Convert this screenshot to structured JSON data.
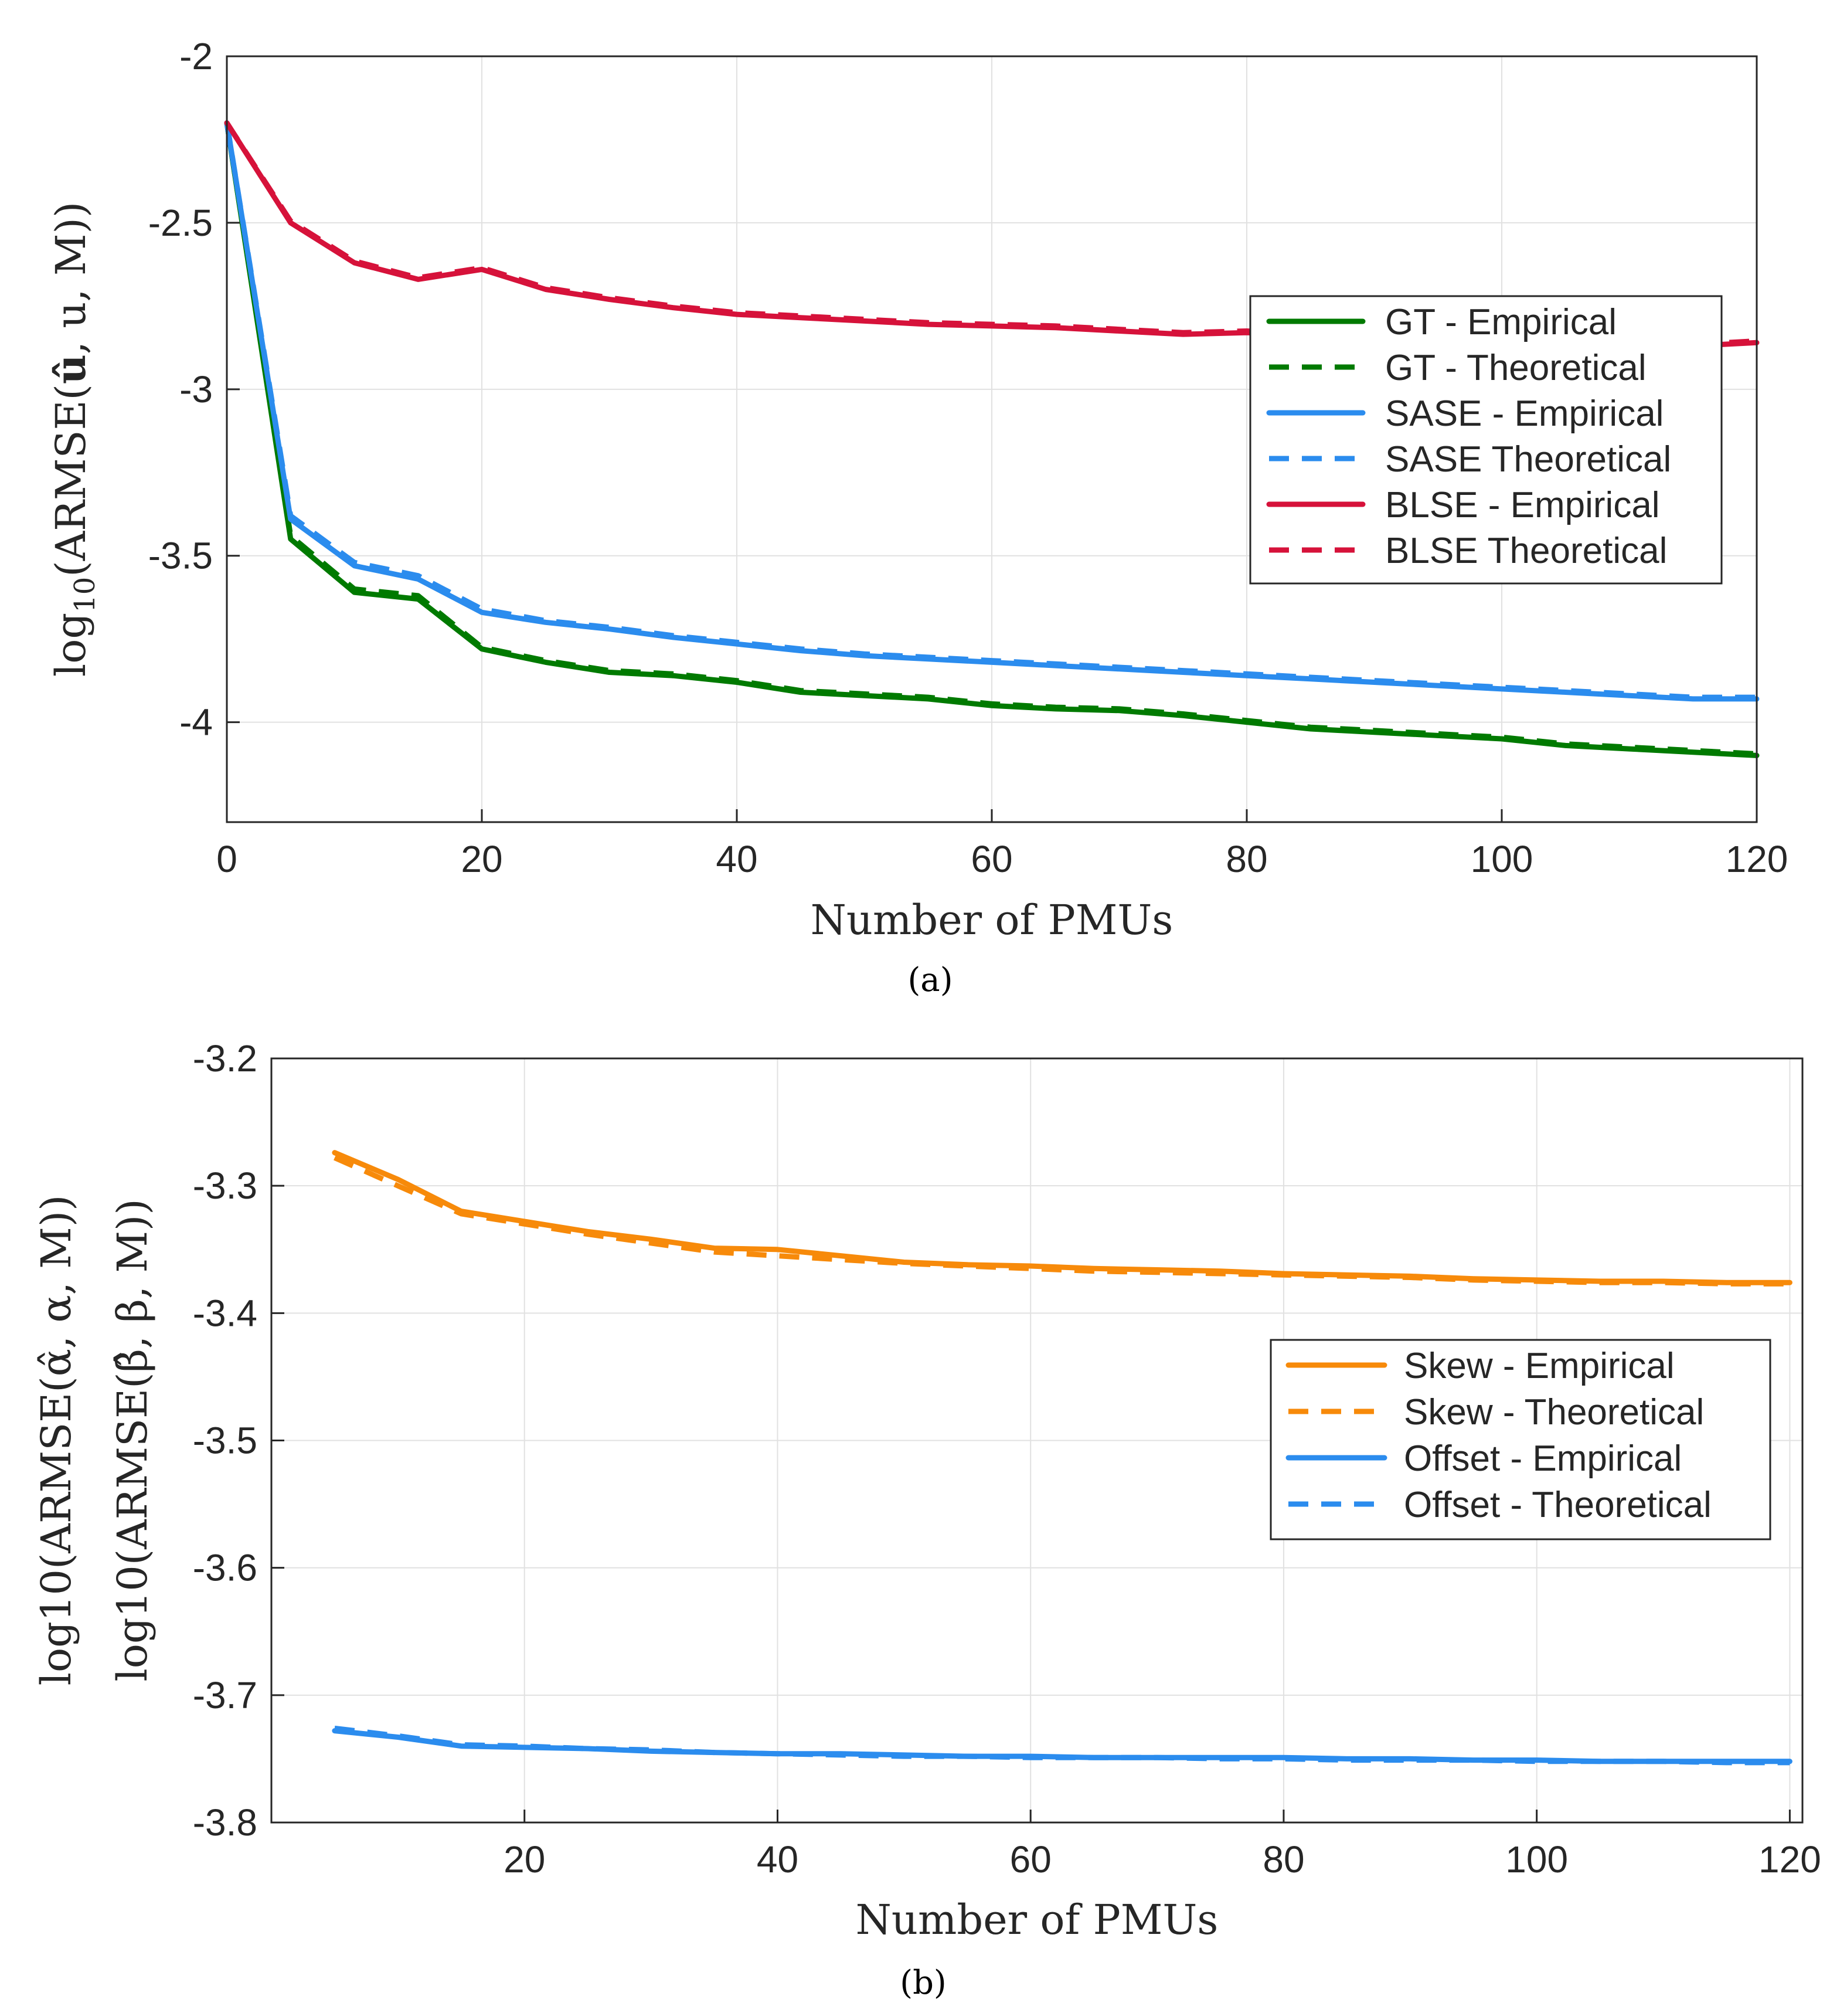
{
  "chart_data": [
    {
      "type": "line",
      "panel_label": "(a)",
      "xlabel": "Number of PMUs",
      "ylabel": "log10(ARMSE(û, u, M))",
      "ylabel_parts": {
        "base": "log",
        "sub": "10",
        "expr": "(ARMSE(",
        "hat": "û",
        "rest": ", u, M))"
      },
      "xlim": [
        0,
        120
      ],
      "ylim": [
        -4.3,
        -2.0
      ],
      "xticks": [
        0,
        20,
        40,
        60,
        80,
        100,
        120
      ],
      "xtick_labels": [
        "0",
        "20",
        "40",
        "60",
        "80",
        "100",
        "120"
      ],
      "yticks": [
        -2.0,
        -2.5,
        -3.0,
        -3.5,
        -4.0
      ],
      "ytick_labels": [
        "-2",
        "-2.5",
        "-3",
        "-3.5",
        "-4"
      ],
      "grid": true,
      "legend_position": "right",
      "x": [
        0,
        5,
        10,
        15,
        20,
        25,
        30,
        35,
        40,
        45,
        50,
        55,
        60,
        65,
        70,
        75,
        80,
        85,
        90,
        95,
        100,
        105,
        110,
        115,
        120
      ],
      "series": [
        {
          "name": "GT - Empirical",
          "color": "#007a00",
          "dash": "solid",
          "values": [
            -2.2,
            -3.45,
            -3.61,
            -3.63,
            -3.78,
            -3.82,
            -3.85,
            -3.86,
            -3.88,
            -3.91,
            -3.92,
            -3.93,
            -3.95,
            -3.96,
            -3.965,
            -3.98,
            -4.0,
            -4.02,
            -4.03,
            -4.04,
            -4.05,
            -4.07,
            -4.08,
            -4.09,
            -4.1
          ]
        },
        {
          "name": "GT - Theoretical",
          "color": "#007a00",
          "dash": "dashed",
          "values": [
            -2.2,
            -3.44,
            -3.6,
            -3.62,
            -3.775,
            -3.815,
            -3.845,
            -3.855,
            -3.875,
            -3.905,
            -3.915,
            -3.925,
            -3.945,
            -3.955,
            -3.96,
            -3.975,
            -3.995,
            -4.015,
            -4.025,
            -4.035,
            -4.045,
            -4.065,
            -4.075,
            -4.085,
            -4.095
          ]
        },
        {
          "name": "SASE - Empirical",
          "color": "#2b8cee",
          "dash": "solid",
          "values": [
            -2.2,
            -3.39,
            -3.53,
            -3.57,
            -3.67,
            -3.7,
            -3.72,
            -3.745,
            -3.765,
            -3.785,
            -3.8,
            -3.81,
            -3.82,
            -3.83,
            -3.84,
            -3.85,
            -3.86,
            -3.87,
            -3.88,
            -3.89,
            -3.9,
            -3.91,
            -3.92,
            -3.93,
            -3.93
          ]
        },
        {
          "name": "SASE Theoretical",
          "color": "#2b8cee",
          "dash": "dashed",
          "values": [
            -2.2,
            -3.38,
            -3.52,
            -3.56,
            -3.66,
            -3.695,
            -3.715,
            -3.74,
            -3.76,
            -3.78,
            -3.795,
            -3.805,
            -3.815,
            -3.825,
            -3.835,
            -3.845,
            -3.855,
            -3.865,
            -3.875,
            -3.885,
            -3.895,
            -3.905,
            -3.915,
            -3.925,
            -3.925
          ]
        },
        {
          "name": "BLSE - Empirical",
          "color": "#d6123a",
          "dash": "solid",
          "values": [
            -2.2,
            -2.5,
            -2.62,
            -2.67,
            -2.64,
            -2.7,
            -2.73,
            -2.755,
            -2.775,
            -2.785,
            -2.795,
            -2.805,
            -2.81,
            -2.815,
            -2.825,
            -2.835,
            -2.83,
            -2.84,
            -2.845,
            -2.85,
            -2.855,
            -2.86,
            -2.865,
            -2.87,
            -2.86
          ]
        },
        {
          "name": "BLSE Theoretical",
          "color": "#d6123a",
          "dash": "dashed",
          "values": [
            -2.2,
            -2.495,
            -2.615,
            -2.665,
            -2.635,
            -2.695,
            -2.725,
            -2.75,
            -2.77,
            -2.78,
            -2.79,
            -2.8,
            -2.805,
            -2.81,
            -2.82,
            -2.83,
            -2.825,
            -2.835,
            -2.84,
            -2.845,
            -2.85,
            -2.855,
            -2.86,
            -2.865,
            -2.855
          ]
        }
      ]
    },
    {
      "type": "line",
      "panel_label": "(b)",
      "xlabel": "Number of PMUs",
      "ylabel_lines": [
        "log10(ARMSE(α̂, α, M))",
        "log10(ARMSE(β̂, β, M))"
      ],
      "xlim": [
        0,
        121
      ],
      "ylim": [
        -3.8,
        -3.2
      ],
      "xticks": [
        20,
        40,
        60,
        80,
        100,
        120
      ],
      "xtick_labels": [
        "20",
        "40",
        "60",
        "80",
        "100",
        "120"
      ],
      "yticks": [
        -3.2,
        -3.3,
        -3.4,
        -3.5,
        -3.6,
        -3.7,
        -3.8
      ],
      "ytick_labels": [
        "-3.2",
        "-3.3",
        "-3.4",
        "-3.5",
        "-3.6",
        "-3.7",
        "-3.8"
      ],
      "grid": true,
      "legend_position": "right",
      "x": [
        5,
        10,
        15,
        20,
        25,
        30,
        35,
        40,
        45,
        50,
        55,
        60,
        65,
        70,
        75,
        80,
        85,
        90,
        95,
        100,
        105,
        110,
        115,
        120
      ],
      "series": [
        {
          "name": "Skew - Empirical",
          "color": "#f78a0a",
          "dash": "solid",
          "values": [
            -3.274,
            -3.295,
            -3.32,
            -3.328,
            -3.336,
            -3.342,
            -3.349,
            -3.35,
            -3.355,
            -3.36,
            -3.362,
            -3.363,
            -3.365,
            -3.366,
            -3.367,
            -3.369,
            -3.37,
            -3.371,
            -3.373,
            -3.374,
            -3.375,
            -3.375,
            -3.376,
            -3.376
          ]
        },
        {
          "name": "Skew - Theoretical",
          "color": "#f78a0a",
          "dash": "dashed",
          "values": [
            -3.278,
            -3.3,
            -3.322,
            -3.33,
            -3.338,
            -3.345,
            -3.352,
            -3.355,
            -3.358,
            -3.361,
            -3.363,
            -3.365,
            -3.367,
            -3.368,
            -3.369,
            -3.37,
            -3.371,
            -3.372,
            -3.374,
            -3.375,
            -3.376,
            -3.376,
            -3.377,
            -3.377
          ]
        },
        {
          "name": "Offset - Empirical",
          "color": "#2b8cee",
          "dash": "solid",
          "values": [
            -3.728,
            -3.733,
            -3.74,
            -3.741,
            -3.742,
            -3.744,
            -3.745,
            -3.746,
            -3.746,
            -3.747,
            -3.748,
            -3.748,
            -3.749,
            -3.749,
            -3.749,
            -3.749,
            -3.75,
            -3.75,
            -3.751,
            -3.751,
            -3.752,
            -3.752,
            -3.752,
            -3.752
          ]
        },
        {
          "name": "Offset - Theoretical",
          "color": "#2b8cee",
          "dash": "dashed",
          "values": [
            -3.726,
            -3.732,
            -3.739,
            -3.74,
            -3.742,
            -3.743,
            -3.745,
            -3.746,
            -3.747,
            -3.748,
            -3.748,
            -3.749,
            -3.749,
            -3.749,
            -3.75,
            -3.75,
            -3.751,
            -3.751,
            -3.751,
            -3.752,
            -3.752,
            -3.752,
            -3.753,
            -3.753
          ]
        }
      ]
    }
  ]
}
